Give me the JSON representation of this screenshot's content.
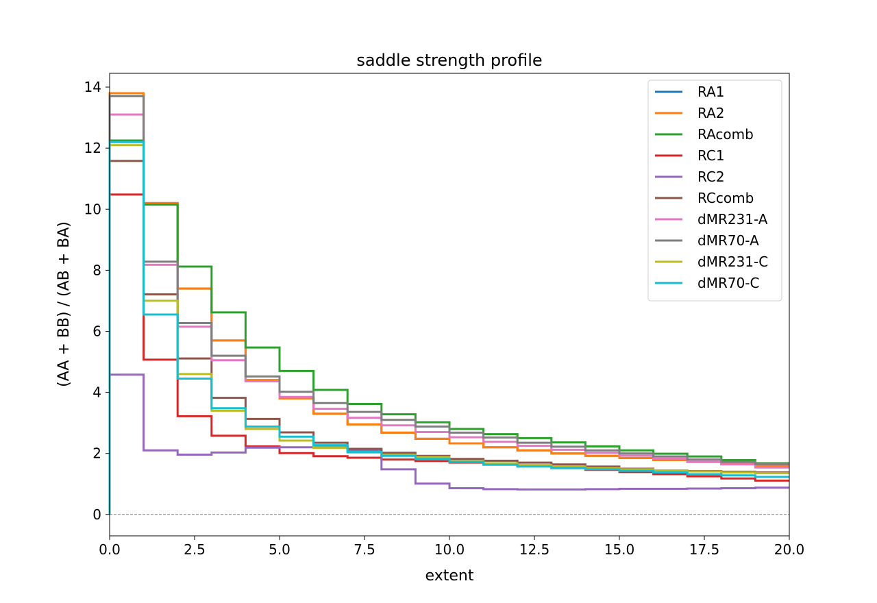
{
  "chart_data": {
    "type": "line",
    "step": "post",
    "title": "saddle strength profile",
    "xlabel": "extent",
    "ylabel": "(AA + BB) / (AB + BA)",
    "xlim": [
      0,
      20
    ],
    "ylim": [
      -0.7,
      14.45
    ],
    "xticks": [
      0,
      2.5,
      5,
      7.5,
      10,
      12.5,
      15,
      17.5,
      20
    ],
    "xtick_labels": [
      "0.0",
      "2.5",
      "5.0",
      "7.5",
      "10.0",
      "12.5",
      "15.0",
      "17.5",
      "20.0"
    ],
    "yticks": [
      0,
      2,
      4,
      6,
      8,
      10,
      12,
      14
    ],
    "ytick_labels": [
      "0",
      "2",
      "4",
      "6",
      "8",
      "10",
      "12",
      "14"
    ],
    "reference_line": {
      "y": 0,
      "style": "dashed",
      "color": "#808080"
    },
    "grid": false,
    "legend_position": "top-right",
    "x": [
      0,
      1,
      2,
      3,
      4,
      5,
      6,
      7,
      8,
      9,
      10,
      11,
      12,
      13,
      14,
      15,
      16,
      17,
      18,
      19,
      20
    ],
    "series": [
      {
        "name": "RA1",
        "color": "#1f77b4",
        "values": [
          13.8,
          10.2,
          7.4,
          5.7,
          4.4,
          3.8,
          3.3,
          2.95,
          2.68,
          2.48,
          2.33,
          2.2,
          2.1,
          2.0,
          1.92,
          1.85,
          1.78,
          1.72,
          1.65,
          1.6,
          1.6
        ]
      },
      {
        "name": "RA2",
        "color": "#ff7f0e",
        "values": [
          13.8,
          10.2,
          7.4,
          5.7,
          4.4,
          3.8,
          3.3,
          2.95,
          2.68,
          2.48,
          2.33,
          2.2,
          2.1,
          2.0,
          1.92,
          1.85,
          1.78,
          1.72,
          1.65,
          1.6,
          1.6
        ]
      },
      {
        "name": "RAcomb",
        "color": "#2ca02c",
        "values": [
          12.25,
          10.15,
          8.12,
          6.62,
          5.47,
          4.7,
          4.08,
          3.62,
          3.28,
          3.02,
          2.8,
          2.63,
          2.5,
          2.36,
          2.23,
          2.1,
          1.99,
          1.9,
          1.78,
          1.68,
          1.68
        ]
      },
      {
        "name": "RC1",
        "color": "#d62728",
        "values": [
          10.48,
          5.07,
          3.22,
          2.58,
          2.23,
          2.01,
          1.91,
          1.86,
          1.8,
          1.75,
          1.7,
          1.64,
          1.58,
          1.52,
          1.46,
          1.39,
          1.32,
          1.25,
          1.18,
          1.11,
          1.11
        ]
      },
      {
        "name": "RC2",
        "color": "#9467bd",
        "values": [
          4.58,
          2.1,
          1.96,
          2.03,
          2.19,
          2.2,
          2.2,
          2.1,
          1.48,
          1.01,
          0.86,
          0.83,
          0.82,
          0.82,
          0.83,
          0.84,
          0.84,
          0.85,
          0.86,
          0.88,
          0.88
        ]
      },
      {
        "name": "RCcomb",
        "color": "#8c564b",
        "values": [
          11.58,
          7.21,
          5.11,
          3.82,
          3.13,
          2.69,
          2.35,
          2.15,
          2.02,
          1.92,
          1.82,
          1.76,
          1.7,
          1.64,
          1.57,
          1.5,
          1.44,
          1.42,
          1.4,
          1.38,
          1.38
        ]
      },
      {
        "name": "dMR231-A",
        "color": "#e377c2",
        "values": [
          13.1,
          8.18,
          6.15,
          5.05,
          4.36,
          3.85,
          3.46,
          3.17,
          2.92,
          2.7,
          2.53,
          2.38,
          2.25,
          2.12,
          2.02,
          1.93,
          1.83,
          1.73,
          1.64,
          1.54,
          1.54
        ]
      },
      {
        "name": "dMR70-A",
        "color": "#7f7f7f",
        "values": [
          13.7,
          8.28,
          6.27,
          5.2,
          4.52,
          4.02,
          3.65,
          3.36,
          3.1,
          2.88,
          2.68,
          2.52,
          2.35,
          2.22,
          2.1,
          2.0,
          1.9,
          1.8,
          1.72,
          1.65,
          1.65
        ]
      },
      {
        "name": "dMR231-C",
        "color": "#bcbd22",
        "values": [
          12.1,
          7.0,
          4.6,
          3.4,
          2.8,
          2.42,
          2.18,
          2.03,
          1.95,
          1.88,
          1.75,
          1.68,
          1.62,
          1.57,
          1.52,
          1.48,
          1.44,
          1.41,
          1.38,
          1.35,
          1.35
        ]
      },
      {
        "name": "dMR70-C",
        "color": "#17becf",
        "values": [
          12.2,
          6.55,
          4.45,
          3.48,
          2.88,
          2.55,
          2.27,
          2.05,
          1.92,
          1.82,
          1.72,
          1.63,
          1.57,
          1.52,
          1.48,
          1.43,
          1.38,
          1.32,
          1.28,
          1.23,
          1.23
        ]
      }
    ]
  }
}
